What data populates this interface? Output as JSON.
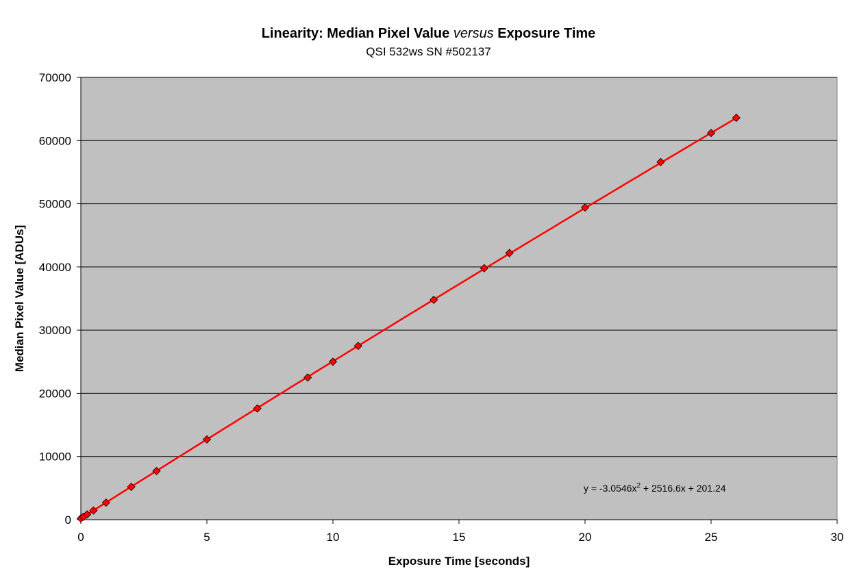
{
  "chart_data": {
    "type": "scatter",
    "title_parts": [
      "Linearity: Median Pixel Value ",
      "versus",
      " Exposure Time"
    ],
    "subtitle": "QSI 532ws SN #502137",
    "xlabel": "Exposure Time [seconds]",
    "ylabel": "Median Pixel Value [ADUs]",
    "xlim": [
      0,
      30
    ],
    "ylim": [
      0,
      70000
    ],
    "x_ticks": [
      0,
      5,
      10,
      15,
      20,
      25,
      30
    ],
    "y_ticks": [
      0,
      10000,
      20000,
      30000,
      40000,
      50000,
      60000,
      70000
    ],
    "grid": "horizontal",
    "colors": {
      "plot_background": "#c0c0c0",
      "marker": "#ff0000",
      "trendline": "#ff0000",
      "gridline": "#000000"
    },
    "series": [
      {
        "marker": "diamond",
        "x": [
          0,
          0.1,
          0.25,
          0.5,
          1,
          2,
          3,
          5,
          7,
          9,
          10,
          11,
          14,
          16,
          17,
          20,
          23,
          25,
          26
        ],
        "y": [
          200,
          450,
          830,
          1450,
          2700,
          5200,
          7700,
          12700,
          17600,
          22500,
          25000,
          27500,
          34800,
          39800,
          42200,
          49400,
          56600,
          61200,
          63600
        ]
      }
    ],
    "trendline": {
      "type": "polynomial",
      "coefficients": [
        -3.0546,
        2516.6,
        201.24
      ],
      "x_range": [
        0,
        26
      ],
      "equation_parts": [
        "y = -3.0546x",
        "2",
        " + 2516.6x + 201.24"
      ]
    }
  }
}
